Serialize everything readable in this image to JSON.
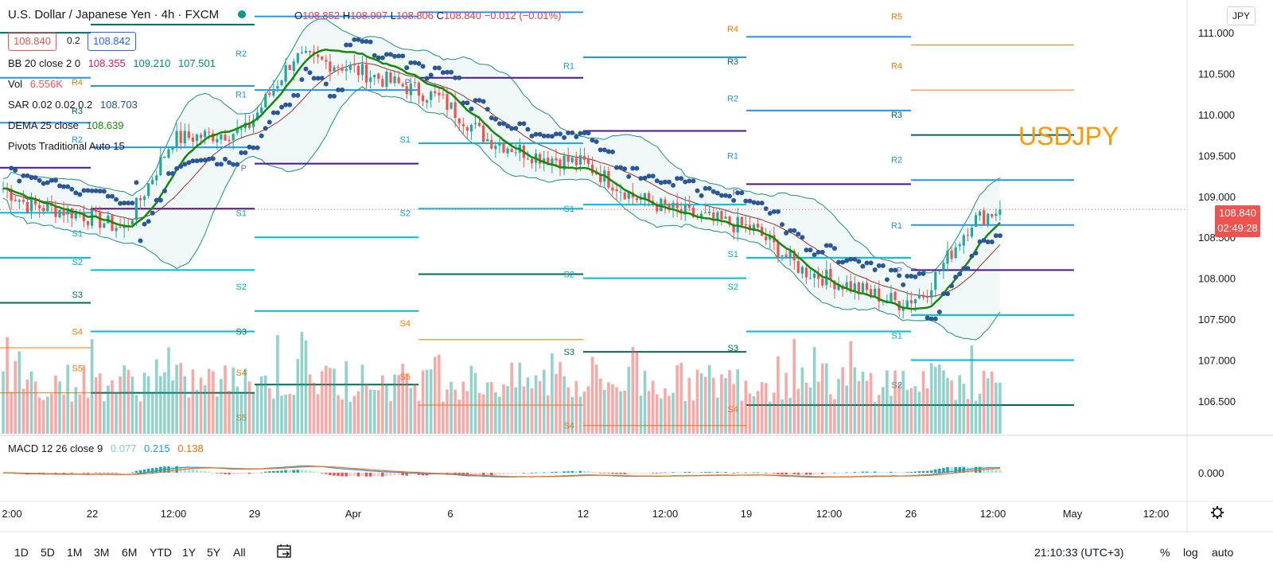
{
  "header": {
    "title": "U.S. Dollar / Japanese Yen · 4h · FXCM",
    "open_label": "O",
    "open": "108.852",
    "high_label": "H",
    "high": "108.997",
    "low_label": "L",
    "low": "108.806",
    "close_label": "C",
    "close": "108.840",
    "change": "−0.012 (−0.01%)",
    "bid": "108.840",
    "spread": "0.2",
    "ask": "108.842",
    "currency": "JPY"
  },
  "indicators": {
    "bb": {
      "label": "BB 20 close 2 0",
      "v1": "108.355",
      "v2": "109.210",
      "v3": "107.501"
    },
    "vol": {
      "label": "Vol",
      "value": "6.556K"
    },
    "sar": {
      "label": "SAR 0.02 0.02 0.2",
      "value": "108.703"
    },
    "dema": {
      "label": "DEMA 25 close",
      "value": "108.639"
    },
    "pivots": {
      "label": "Pivots Traditional Auto 15"
    },
    "macd": {
      "label": "MACD 12 26 close 9",
      "hist": "0.077",
      "macd": "0.215",
      "signal": "0.138"
    }
  },
  "annotation": "USDJPY",
  "last_price": {
    "price": "108.840",
    "countdown": "02:49:28"
  },
  "colors": {
    "up": "#26a69a",
    "down": "#ef5350",
    "accent": "#2962ff",
    "annotation": "#ff9800"
  },
  "chart_data": {
    "type": "line",
    "title": "U.S. Dollar / Japanese Yen · 4h · FXCM",
    "x_ticks": [
      "2:00",
      "22",
      "12:00",
      "29",
      "Apr",
      "6",
      "12",
      "12:00",
      "19",
      "12:00",
      "26",
      "12:00",
      "May",
      "12:00"
    ],
    "y_ticks": [
      "111.000",
      "110.500",
      "110.000",
      "109.500",
      "109.000",
      "108.500",
      "108.000",
      "107.500",
      "107.000",
      "106.500"
    ],
    "macd_y_ticks": [
      "0.000"
    ],
    "ylim": [
      106.1,
      111.4
    ],
    "price_path": [
      {
        "x": "Mar 19",
        "y": 109.1
      },
      {
        "x": "Mar 20",
        "y": 108.9
      },
      {
        "x": "Mar 22",
        "y": 108.8
      },
      {
        "x": "Mar 24",
        "y": 108.6
      },
      {
        "x": "Mar 26",
        "y": 109.7
      },
      {
        "x": "Mar 29",
        "y": 109.8
      },
      {
        "x": "Mar 31",
        "y": 110.7
      },
      {
        "x": "Apr 2",
        "y": 110.6
      },
      {
        "x": "Apr 4",
        "y": 110.4
      },
      {
        "x": "Apr 6",
        "y": 110.2
      },
      {
        "x": "Apr 8",
        "y": 109.7
      },
      {
        "x": "Apr 10",
        "y": 109.5
      },
      {
        "x": "Apr 12",
        "y": 109.4
      },
      {
        "x": "Apr 14",
        "y": 109.0
      },
      {
        "x": "Apr 16",
        "y": 108.8
      },
      {
        "x": "Apr 19",
        "y": 108.6
      },
      {
        "x": "Apr 21",
        "y": 108.1
      },
      {
        "x": "Apr 23",
        "y": 107.9
      },
      {
        "x": "Apr 25",
        "y": 107.7
      },
      {
        "x": "Apr 26",
        "y": 107.8
      },
      {
        "x": "Apr 28",
        "y": 108.7
      },
      {
        "x": "Apr 29",
        "y": 108.84
      }
    ]
  },
  "pivot_labels": {
    "p1": [
      "R4",
      "R3",
      "R2",
      "S1",
      "S2",
      "S3",
      "S4",
      "S5"
    ],
    "p2": [
      "R2",
      "R1",
      "P",
      "S1",
      "S2",
      "S3",
      "S4",
      "S5"
    ],
    "p3": [
      "P",
      "S1",
      "S2",
      "S4",
      "S5"
    ],
    "p4": [
      "R1",
      "S1",
      "S2",
      "S3",
      "S4"
    ],
    "p5": [
      "R4",
      "R3",
      "R2",
      "R1",
      "P",
      "S1",
      "S2",
      "S3",
      "S4"
    ],
    "p6": [
      "R5",
      "R4",
      "R3",
      "R2",
      "R1",
      "P",
      "S1",
      "S2"
    ]
  },
  "timeframes": [
    "1D",
    "5D",
    "1M",
    "3M",
    "6M",
    "YTD",
    "1Y",
    "5Y",
    "All"
  ],
  "footer": {
    "clock": "21:10:33 (UTC+3)",
    "percent": "%",
    "log": "log",
    "auto": "auto"
  }
}
